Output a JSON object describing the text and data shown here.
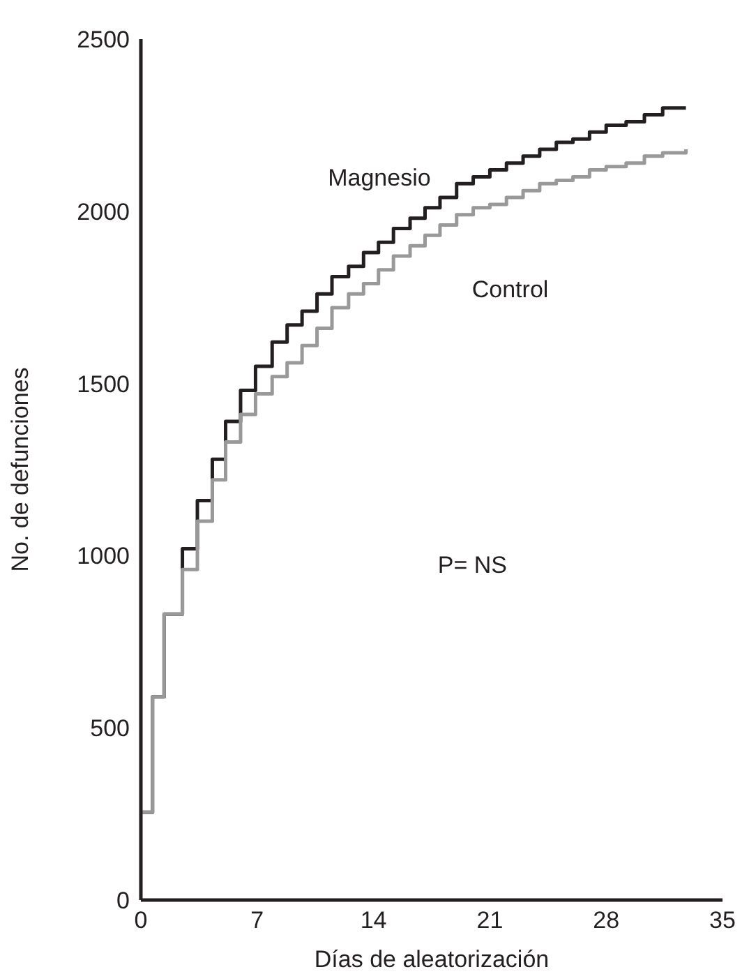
{
  "chart_data": {
    "type": "step",
    "xlabel": "Días de aleatorización",
    "ylabel": "No. de defunciones",
    "x": [
      0,
      0.7,
      1.4,
      2.5,
      3.4,
      4.3,
      5.1,
      6.0,
      6.9,
      7.9,
      8.8,
      9.7,
      10.6,
      11.5,
      12.5,
      13.4,
      14.3,
      15.2,
      16.2,
      17.1,
      18.0,
      19.0,
      20.0,
      21.0,
      22.0,
      23.0,
      24.0,
      25.0,
      26.0,
      27.0,
      28.0,
      29.2,
      30.3,
      31.4,
      32.8
    ],
    "series": [
      {
        "name": "Magnesio",
        "color": "#231f20",
        "values": [
          255,
          590,
          830,
          1020,
          1160,
          1280,
          1390,
          1480,
          1550,
          1620,
          1670,
          1710,
          1760,
          1810,
          1840,
          1880,
          1910,
          1950,
          1980,
          2010,
          2040,
          2080,
          2100,
          2120,
          2140,
          2160,
          2180,
          2200,
          2210,
          2230,
          2250,
          2260,
          2280,
          2300,
          2300
        ]
      },
      {
        "name": "Control",
        "color": "#999999",
        "values": [
          255,
          590,
          830,
          960,
          1100,
          1220,
          1330,
          1410,
          1470,
          1520,
          1560,
          1610,
          1660,
          1720,
          1760,
          1790,
          1830,
          1870,
          1900,
          1930,
          1960,
          1990,
          2010,
          2020,
          2040,
          2060,
          2080,
          2090,
          2100,
          2120,
          2130,
          2140,
          2160,
          2170,
          2180
        ]
      }
    ],
    "xlim": [
      0,
      35
    ],
    "xticks": [
      0,
      7,
      14,
      21,
      28,
      35
    ],
    "ylim": [
      0,
      2500
    ],
    "yticks": [
      0,
      500,
      1000,
      1500,
      2000,
      2500
    ],
    "grid": false,
    "marker": "none",
    "line_style": "solid",
    "annotations": [
      "P= NS"
    ]
  }
}
